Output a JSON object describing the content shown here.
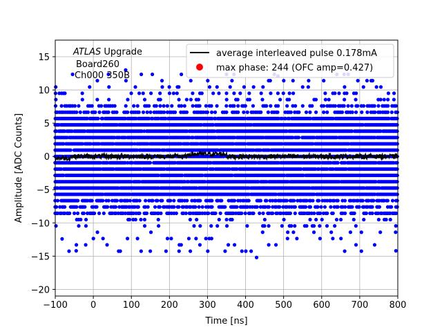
{
  "chart_data": {
    "type": "scatter",
    "title": "",
    "xlabel": "Time [ns]",
    "ylabel": "Amplitude [ADC Counts]",
    "xlim": [
      -100,
      800
    ],
    "ylim": [
      -21,
      17.5
    ],
    "grid": true,
    "xticks": [
      -100,
      0,
      100,
      200,
      300,
      400,
      500,
      600,
      700,
      800
    ],
    "yticks": [
      -20,
      -15,
      -10,
      -5,
      0,
      5,
      10,
      15
    ],
    "xtick_labels": [
      "−100",
      "0",
      "100",
      "200",
      "300",
      "400",
      "500",
      "600",
      "700",
      "800"
    ],
    "ytick_labels": [
      "−20",
      "−15",
      "−10",
      "−5",
      "0",
      "5",
      "10",
      "15"
    ],
    "annotation": {
      "italic": "ATLAS",
      "line1_rest": " Upgrade",
      "line2": "Board260",
      "line3": "Ch000 350B"
    },
    "legend": {
      "placement": "top-right",
      "entries": [
        {
          "label": "average interleaved pulse 0.178mA",
          "color": "#000000",
          "marker": "line"
        },
        {
          "label": "max phase: 244 (OFC amp=0.427)",
          "color": "#ff0000",
          "marker": "dot"
        }
      ]
    },
    "series": [
      {
        "kind": "scatter",
        "color": "#0000ff",
        "x_range": [
          -100,
          800
        ],
        "x_step_approx": 3.12,
        "quantization": 0.95,
        "dense_levels": [
          -8.55,
          -7.6,
          -6.65,
          -5.7,
          -4.75,
          -3.8,
          -2.85,
          -1.9,
          -0.95,
          0,
          0.95,
          1.9,
          2.85,
          3.8,
          4.75,
          5.7
        ],
        "sparse_levels": [
          -14.25,
          -13.3,
          -12.35,
          -11.4,
          -10.45,
          -9.5,
          6.65,
          7.6,
          8.55,
          9.5,
          10.45,
          11.4,
          12.35
        ],
        "outliers": [
          {
            "x": -45,
            "y": -14.2
          },
          {
            "x": -20,
            "y": -13.3
          },
          {
            "x": -82,
            "y": -12.4
          },
          {
            "x": 85,
            "y": 13.0
          },
          {
            "x": 429,
            "y": -15.2
          },
          {
            "x": 485,
            "y": 12.1
          },
          {
            "x": 795,
            "y": -14.2
          }
        ]
      },
      {
        "kind": "line",
        "color": "#000000",
        "x_range": [
          -100,
          800
        ],
        "baseline": 0.0,
        "noise": 0.35
      }
    ]
  }
}
